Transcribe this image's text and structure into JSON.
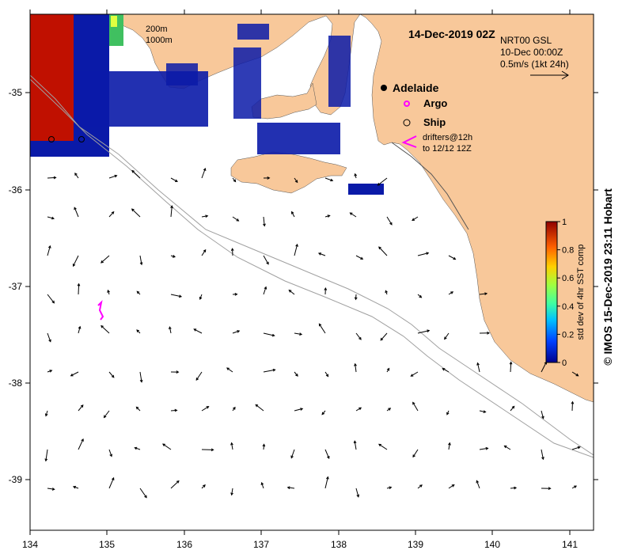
{
  "map": {
    "title": "14-Dec-2019 02Z",
    "current_product": "NRT00 GSL",
    "current_time": "10-Dec 00:00Z",
    "vector_scale": "0.5m/s (1kt 24h)",
    "bathymetry_labels": [
      "200m",
      "1000m"
    ],
    "x_ticks": [
      "134",
      "135",
      "136",
      "137",
      "138",
      "139",
      "140",
      "141"
    ],
    "y_ticks": [
      "-35",
      "-36",
      "-37",
      "-38",
      "-39"
    ],
    "legend": {
      "city": "Adelaide",
      "argo": "Argo",
      "ship": "Ship",
      "drifters_line1": "drifters@12h",
      "drifters_line2": "to 12/12 12Z"
    },
    "colorbar": {
      "label": "std dev of 4hr SST comp",
      "ticks": [
        "1",
        "0.8",
        "0.6",
        "0.4",
        "0.2",
        "0"
      ]
    },
    "credit": "© IMOS 15-Dec-2019 23:11 Hobart",
    "colors": {
      "land": "#f8c89a",
      "contour": "#a0a0a0",
      "argo": "#ff00ff",
      "drifter": "#ff00ff"
    }
  }
}
